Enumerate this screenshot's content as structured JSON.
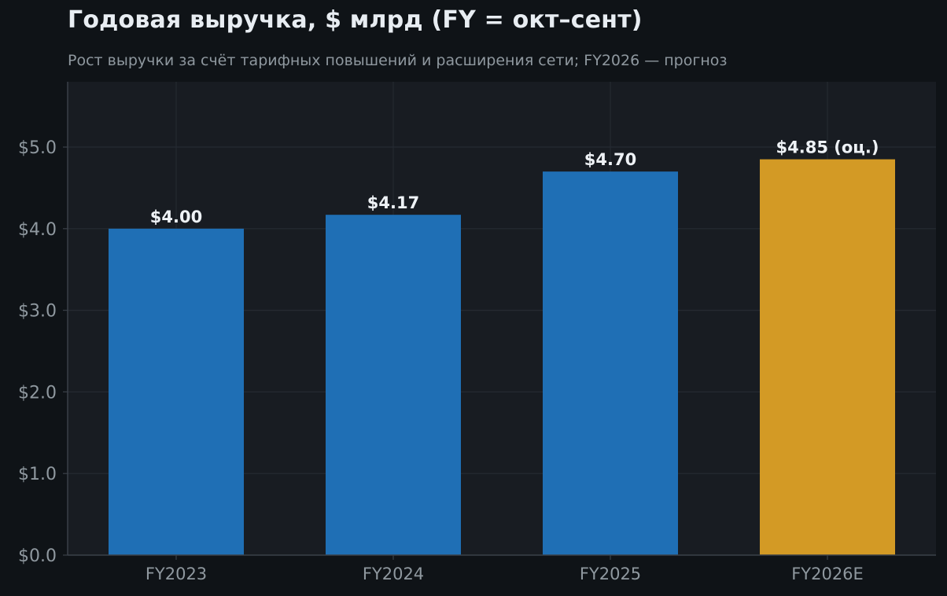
{
  "chart_data": {
    "type": "bar",
    "title": "Годовая выручка, $ млрд (FY = окт–сент)",
    "subtitle": "Рост выручки за счёт тарифных повышений и расширения сети; FY2026 — прогноз",
    "xlabel": "",
    "ylabel": "",
    "categories": [
      "FY2023",
      "FY2024",
      "FY2025",
      "FY2026E"
    ],
    "values": [
      4.0,
      4.17,
      4.7,
      4.85
    ],
    "data_labels": [
      "$4.00",
      "$4.17",
      "$4.70",
      "$4.85 (оц.)"
    ],
    "forecast": [
      false,
      false,
      false,
      true
    ],
    "ylim": [
      0,
      5.8
    ],
    "yticks": [
      0,
      1,
      2,
      3,
      4,
      5
    ],
    "ytick_labels": [
      "$0.0",
      "$1.0",
      "$2.0",
      "$3.0",
      "$4.0",
      "$5.0"
    ],
    "grid": true,
    "colors": {
      "actual": "#1f6fb5",
      "forecast": "#d39a25",
      "plot_bg": "#181c22",
      "page_bg": "#0f1317",
      "grid": "#262b33",
      "tick_text": "#8f989f",
      "label_text": "#eef2f6"
    }
  }
}
